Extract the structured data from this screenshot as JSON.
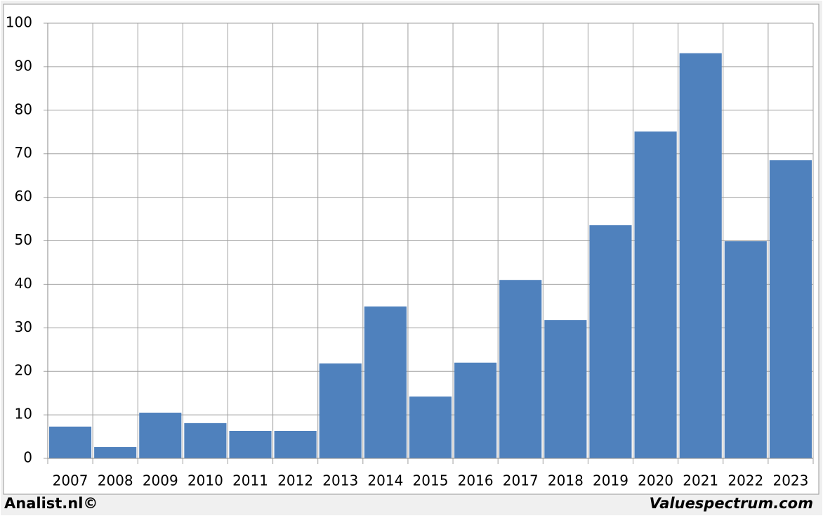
{
  "chart_data": {
    "type": "bar",
    "categories": [
      "2007",
      "2008",
      "2009",
      "2010",
      "2011",
      "2012",
      "2013",
      "2014",
      "2015",
      "2016",
      "2017",
      "2018",
      "2019",
      "2020",
      "2021",
      "2022",
      "2023"
    ],
    "values": [
      7.3,
      2.6,
      10.5,
      8.1,
      6.3,
      6.3,
      21.8,
      34.9,
      14.2,
      22.0,
      41.0,
      31.8,
      53.6,
      75.1,
      93.1,
      49.9,
      68.5
    ],
    "color": "#4f81bd",
    "ylim": [
      0,
      100
    ],
    "yticks": [
      0,
      10,
      20,
      30,
      40,
      50,
      60,
      70,
      80,
      90,
      100
    ],
    "grid": true,
    "annotations": [
      "Analist.nl©",
      "Valuespectrum.com"
    ]
  }
}
